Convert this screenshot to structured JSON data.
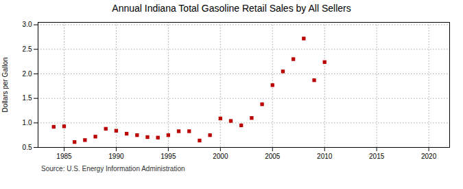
{
  "chart_data": {
    "type": "scatter",
    "title": "Annual Indiana Total Gasoline Retail Sales by All Sellers",
    "ylabel": "Dollars per Gallon",
    "source": "Source: U.S. Energy Information Administration",
    "x": [
      1984,
      1985,
      1986,
      1987,
      1988,
      1989,
      1990,
      1991,
      1992,
      1993,
      1994,
      1995,
      1996,
      1997,
      1998,
      1999,
      2000,
      2001,
      2002,
      2003,
      2004,
      2005,
      2006,
      2007,
      2008,
      2009,
      2010
    ],
    "values": [
      0.92,
      0.93,
      0.61,
      0.65,
      0.72,
      0.88,
      0.84,
      0.78,
      0.75,
      0.71,
      0.7,
      0.75,
      0.83,
      0.83,
      0.64,
      0.75,
      1.09,
      1.04,
      0.95,
      1.1,
      1.38,
      1.77,
      2.05,
      2.3,
      2.72,
      1.87,
      2.24
    ],
    "color": "#bb0000",
    "marker": "square",
    "xlim": [
      1982.5,
      2022
    ],
    "ylim": [
      0.5,
      3.05
    ],
    "xticks": [
      1985,
      1990,
      1995,
      2000,
      2005,
      2010,
      2015,
      2020
    ],
    "yticks": [
      0.5,
      {
        "value": 1,
        "label": "1.0"
      },
      1.5,
      {
        "value": 2,
        "label": "2.0"
      },
      2.5,
      {
        "value": 3,
        "label": "3.0"
      }
    ],
    "grid": true
  }
}
